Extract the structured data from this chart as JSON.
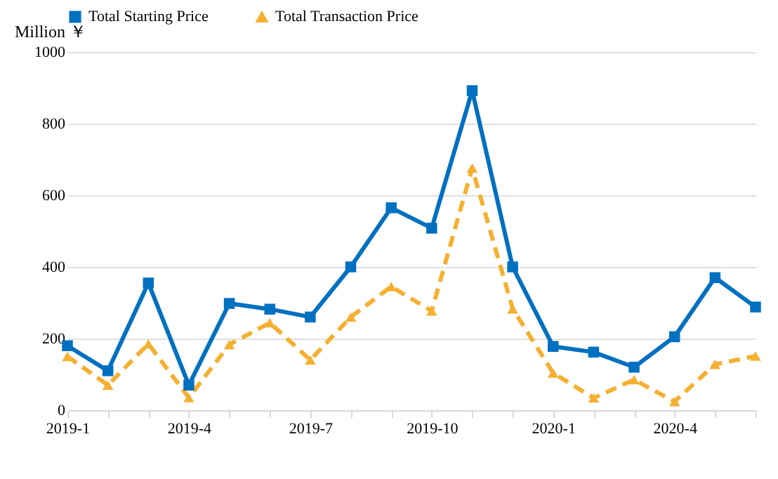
{
  "chart_data": {
    "type": "line",
    "ylabel": "Million ￥",
    "categories": [
      "2019-1",
      null,
      null,
      "2019-4",
      null,
      null,
      "2019-7",
      null,
      null,
      "2019-10",
      null,
      null,
      "2020-1",
      null,
      null,
      "2020-4",
      null,
      null
    ],
    "series": [
      {
        "name": "Total Starting Price",
        "color": "#0070c0",
        "marker": "square",
        "line_style": "solid",
        "values": [
          180,
          110,
          355,
          70,
          298,
          282,
          260,
          400,
          565,
          508,
          892,
          400,
          178,
          162,
          120,
          205,
          370,
          288
        ]
      },
      {
        "name": "Total Transaction Price",
        "color": "#f5b031",
        "marker": "triangle",
        "line_style": "dashed",
        "values": [
          150,
          70,
          185,
          35,
          183,
          244,
          140,
          260,
          345,
          277,
          676,
          283,
          104,
          34,
          85,
          24,
          128,
          151
        ]
      }
    ],
    "ylim": [
      0,
      1000
    ],
    "yticks": [
      0,
      200,
      400,
      600,
      800,
      1000
    ],
    "grid": "y",
    "legend": "top"
  }
}
